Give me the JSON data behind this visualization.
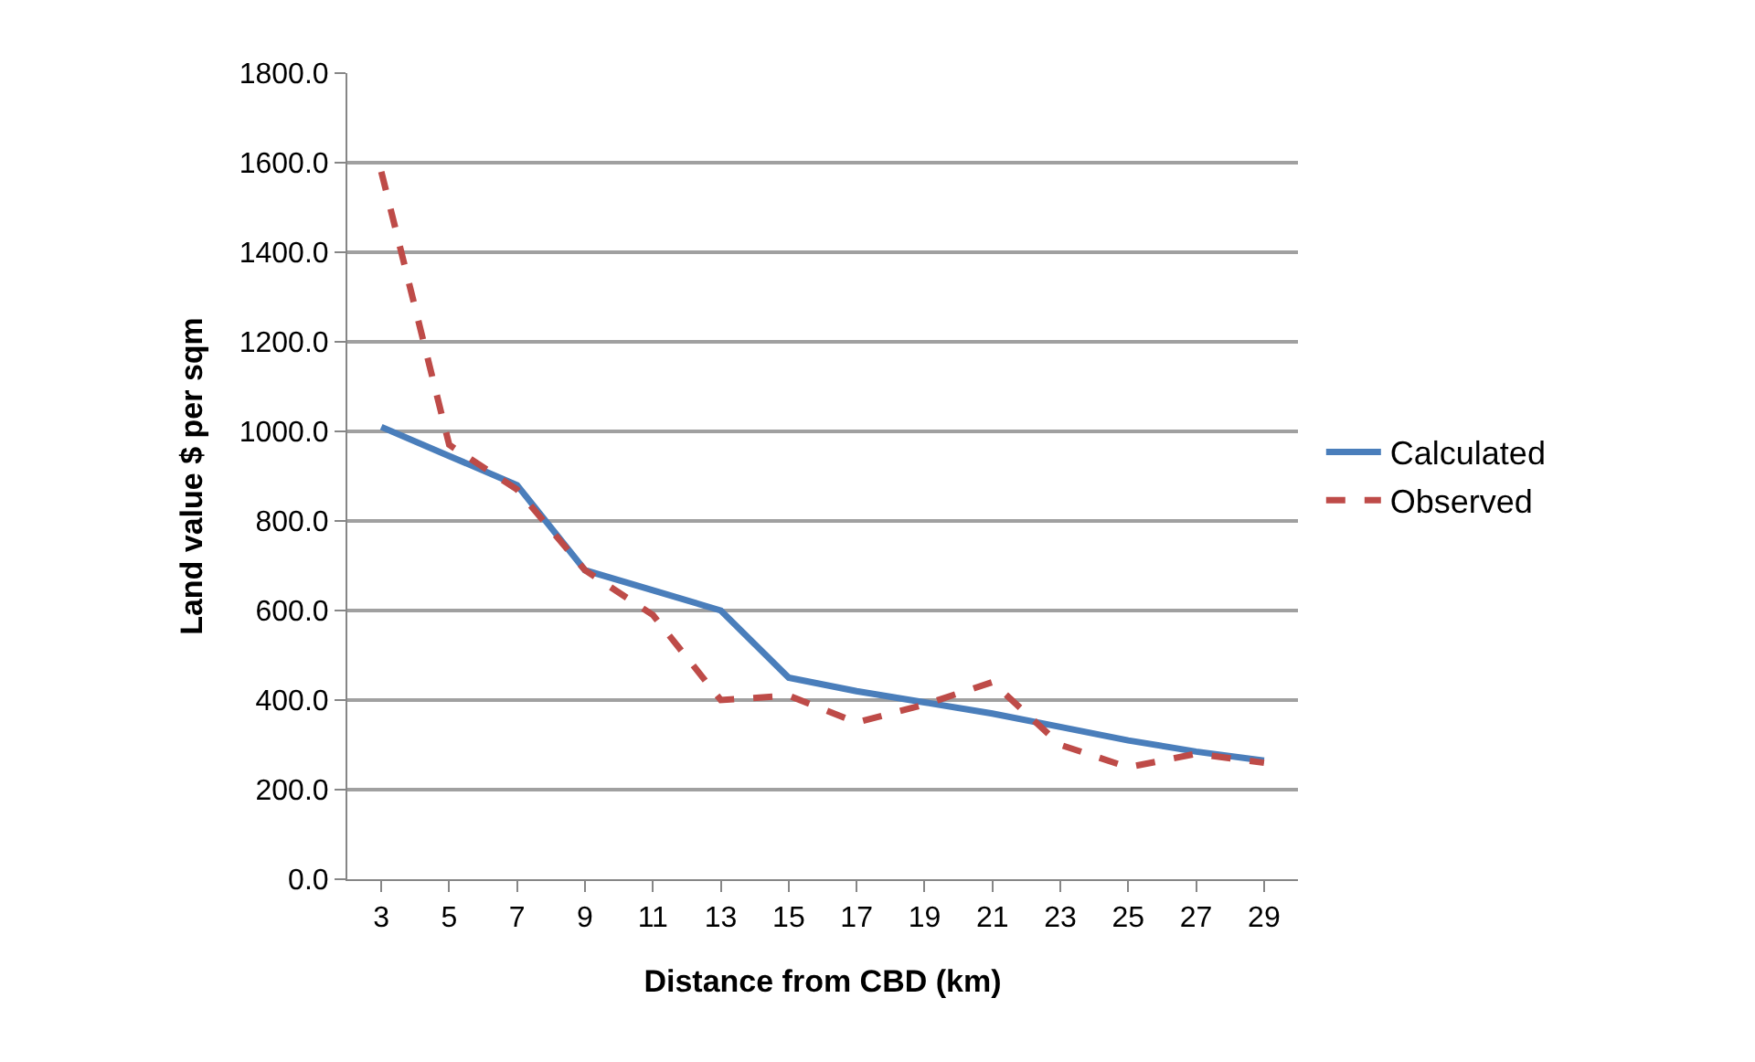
{
  "chart_data": {
    "type": "line",
    "xlabel": "Distance from CBD (km)",
    "ylabel": "Land value $ per sqm",
    "categories": [
      "3",
      "5",
      "7",
      "9",
      "11",
      "13",
      "15",
      "17",
      "19",
      "21",
      "23",
      "25",
      "27",
      "29"
    ],
    "series": [
      {
        "name": "Calculated",
        "color": "#4a7ebb",
        "line_style": "solid",
        "values": [
          1010,
          945,
          880,
          690,
          645,
          600,
          450,
          420,
          395,
          370,
          340,
          310,
          285,
          265
        ]
      },
      {
        "name": "Observed",
        "color": "#be4b48",
        "line_style": "dashed",
        "values": [
          1580,
          970,
          870,
          690,
          590,
          400,
          410,
          350,
          390,
          440,
          300,
          250,
          280,
          260
        ]
      }
    ],
    "ylim": [
      0,
      1800
    ],
    "yticks": [
      {
        "value": 0,
        "label": "0.0"
      },
      {
        "value": 200,
        "label": "200.0"
      },
      {
        "value": 400,
        "label": "400.0"
      },
      {
        "value": 600,
        "label": "600.0"
      },
      {
        "value": 800,
        "label": "800.0"
      },
      {
        "value": 1000,
        "label": "1000.0"
      },
      {
        "value": 1200,
        "label": "1200.0"
      },
      {
        "value": 1400,
        "label": "1400.0"
      },
      {
        "value": 1600,
        "label": "1600.0"
      },
      {
        "value": 1800,
        "label": "1800.0"
      }
    ],
    "grid": "y",
    "legend": "right",
    "marker": "none"
  }
}
